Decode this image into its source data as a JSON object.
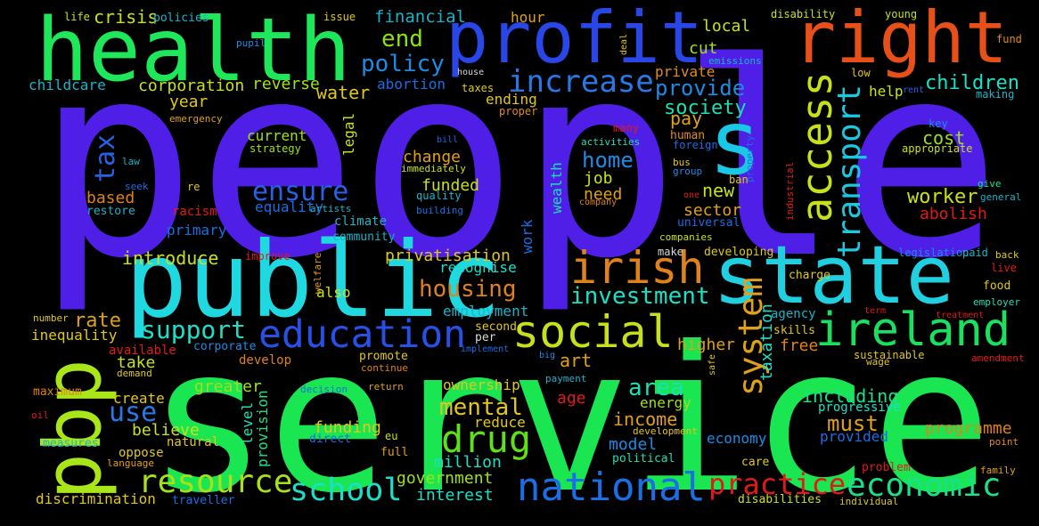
{
  "words": [
    "people",
    "service",
    "public",
    "state",
    "health",
    "profit",
    "right",
    "pbp",
    "s",
    "irish",
    "social",
    "ireland",
    "education",
    "national",
    "economic",
    "drug",
    "school",
    "resource",
    "practice",
    "access",
    "transport",
    "system",
    "taxation",
    "tax",
    "increase",
    "policy",
    "end",
    "financial",
    "hour",
    "local",
    "cut",
    "private",
    "provide",
    "society",
    "pay",
    "children",
    "help",
    "rent",
    "making",
    "key",
    "cost",
    "appropriate",
    "worker",
    "abolish",
    "give",
    "general",
    "fund",
    "low",
    "young",
    "disability",
    "deal",
    "emissions",
    "ensure",
    "equality",
    "artists",
    "home",
    "job",
    "need",
    "change",
    "funded",
    "immediately",
    "quality",
    "building",
    "bill",
    "abortion",
    "taxes",
    "ending",
    "proper",
    "house",
    "water",
    "legal",
    "year",
    "corporation",
    "reverse",
    "childcare",
    "emergency",
    "current",
    "strategy",
    "based",
    "restore",
    "seek",
    "law",
    "re",
    "racism",
    "primary",
    "climate",
    "community",
    "introduce",
    "improve",
    "welfare",
    "also",
    "privatisation",
    "recognise",
    "housing",
    "employment",
    "investment",
    "wealth",
    "work",
    "sector",
    "new",
    "universal",
    "make",
    "developing",
    "companies",
    "charge",
    "legislation",
    "paid",
    "back",
    "live",
    "food",
    "employer",
    "treatment",
    "term",
    "agency",
    "skills",
    "free",
    "higher",
    "mental",
    "art",
    "age",
    "area",
    "energy",
    "income",
    "model",
    "development",
    "political",
    "including",
    "progressive",
    "must",
    "provided",
    "programme",
    "point",
    "problem",
    "family",
    "individual",
    "disabilities",
    "care",
    "economy",
    "amendment",
    "sustainable",
    "wage",
    "support",
    "rate",
    "inequality",
    "number",
    "available",
    "corporate",
    "take",
    "develop",
    "demand",
    "greater",
    "maximum",
    "use",
    "create",
    "believe",
    "oppose",
    "natural",
    "oil",
    "measures",
    "language",
    "discrimination",
    "traveller",
    "level",
    "provision",
    "funding",
    "direct",
    "eu",
    "full",
    "million",
    "government",
    "interest",
    "reduce",
    "ownership",
    "decision",
    "return",
    "promote",
    "continue",
    "second",
    "per",
    "implement",
    "big",
    "payment",
    "safe",
    "life",
    "crisis",
    "policies",
    "issue",
    "pupil",
    "human",
    "foreign",
    "many",
    "activities",
    "property",
    "bus",
    "group",
    "ban",
    "one",
    "company",
    "industrial"
  ]
}
